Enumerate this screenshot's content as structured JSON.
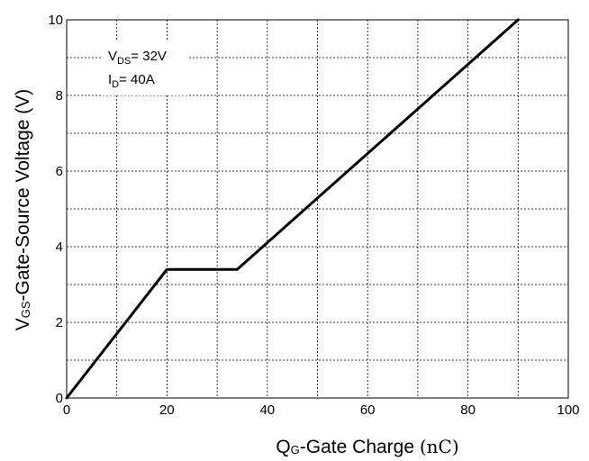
{
  "chart_data": {
    "type": "line",
    "xlabel": {
      "symbol": "Q",
      "subscript": "G",
      "text": "-Gate Charge ",
      "unit": "(nC)"
    },
    "ylabel": {
      "symbol": "V",
      "subscript": "GS",
      "text": "-Gate-Source Voltage (V)"
    },
    "xlim": [
      0,
      100
    ],
    "ylim": [
      0,
      10
    ],
    "xticks": [
      0,
      20,
      40,
      60,
      80,
      100
    ],
    "yticks": [
      0,
      2,
      4,
      6,
      8,
      10
    ],
    "xtick_labels": [
      "0",
      "20",
      "40",
      "60",
      "80",
      "100"
    ],
    "ytick_labels": [
      "0",
      "2",
      "4",
      "6",
      "8",
      "10"
    ],
    "grid": true,
    "annotations": [
      {
        "main": "V",
        "sub": "DS",
        "rest": "= 32V"
      },
      {
        "main": "I",
        "sub": "D",
        "rest": "= 40A"
      }
    ],
    "series": [
      {
        "x": [
          0,
          20,
          34,
          90
        ],
        "y": [
          0,
          3.4,
          3.4,
          10
        ]
      }
    ]
  }
}
